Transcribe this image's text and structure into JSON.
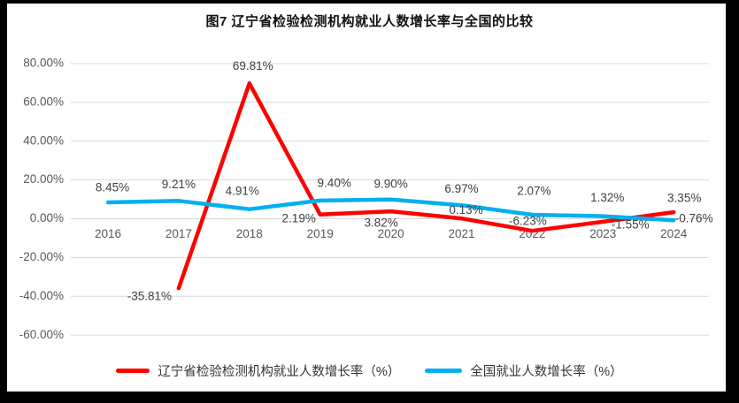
{
  "colors": {
    "frame": "#000000",
    "background": "#ffffff",
    "grid": "#d9d9d9",
    "axis_text": "#595959",
    "data_label": "#404040",
    "liaoning_red": "#ff0000",
    "national_blue": "#00b0f0"
  },
  "chart_data": {
    "type": "line",
    "title": "图7  辽宁省检验检测机构就业人数增长率与全国的比较",
    "categories": [
      "2016",
      "2017",
      "2018",
      "2019",
      "2020",
      "2021",
      "2022",
      "2023",
      "2024"
    ],
    "series": [
      {
        "name": "辽宁省检验检测机构就业人数增长率（%）",
        "color": "#ff0000",
        "values": [
          null,
          -35.81,
          69.81,
          2.19,
          3.82,
          0.13,
          -6.23,
          -1.55,
          3.35
        ],
        "labels": [
          null,
          "-35.81%",
          "69.81%",
          "2.19%",
          "3.82%",
          "0.13%",
          "-6.23%",
          "-1.55%",
          "3.35%"
        ],
        "label_offsets": [
          null,
          [
            -33,
            10
          ],
          [
            4,
            -19
          ],
          [
            -24,
            5
          ],
          [
            -11,
            14
          ],
          [
            5,
            -9
          ],
          [
            -5,
            -10
          ],
          [
            31,
            4
          ],
          [
            12,
            -15
          ]
        ]
      },
      {
        "name": "全国就业人数增长率（%）",
        "color": "#00b0f0",
        "values": [
          8.45,
          9.21,
          4.91,
          9.4,
          9.9,
          6.97,
          2.07,
          1.32,
          -0.76
        ],
        "labels": [
          "8.45%",
          "9.21%",
          "4.91%",
          "9.40%",
          "9.90%",
          "6.97%",
          "2.07%",
          "1.32%",
          "-0.76%"
        ],
        "label_offsets": [
          [
            5,
            -16
          ],
          [
            0,
            -18
          ],
          [
            -8,
            -20
          ],
          [
            16,
            -19
          ],
          [
            0,
            -17
          ],
          [
            0,
            -18
          ],
          [
            2,
            -26
          ],
          [
            5,
            -20
          ],
          [
            23,
            -1
          ]
        ]
      }
    ],
    "y_axis": {
      "min": -60,
      "max": 80,
      "step": 20,
      "tick_labels": [
        "80.00%",
        "60.00%",
        "40.00%",
        "20.00%",
        "0.00%",
        "-20.00%",
        "-40.00%",
        "-60.00%"
      ],
      "tick_values": [
        80,
        60,
        40,
        20,
        0,
        -20,
        -40,
        -60
      ]
    },
    "grid": true,
    "legend_position": "bottom"
  }
}
